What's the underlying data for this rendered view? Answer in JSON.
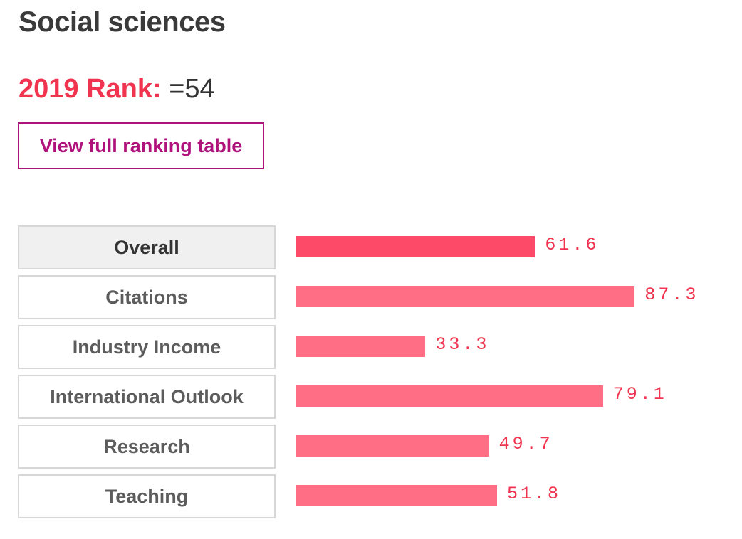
{
  "header": {
    "title": "Social sciences"
  },
  "rank": {
    "label": "2019 Rank:",
    "value": "=54"
  },
  "actions": {
    "ranking_button_label": "View full ranking table"
  },
  "chart_data": {
    "type": "bar",
    "categories": [
      "Overall",
      "Citations",
      "Industry Income",
      "International Outlook",
      "Research",
      "Teaching"
    ],
    "values": [
      61.6,
      87.3,
      33.3,
      79.1,
      49.7,
      51.8
    ],
    "value_labels": [
      "61.6",
      "87.3",
      "33.3",
      "79.1",
      "49.7",
      "51.8"
    ],
    "selected_category": "Overall",
    "xlim": [
      0,
      100
    ]
  },
  "colors": {
    "accent": "#f0344f",
    "bar": "#ff6e85",
    "bar_active": "#fe4a69",
    "button": "#b0127c"
  }
}
